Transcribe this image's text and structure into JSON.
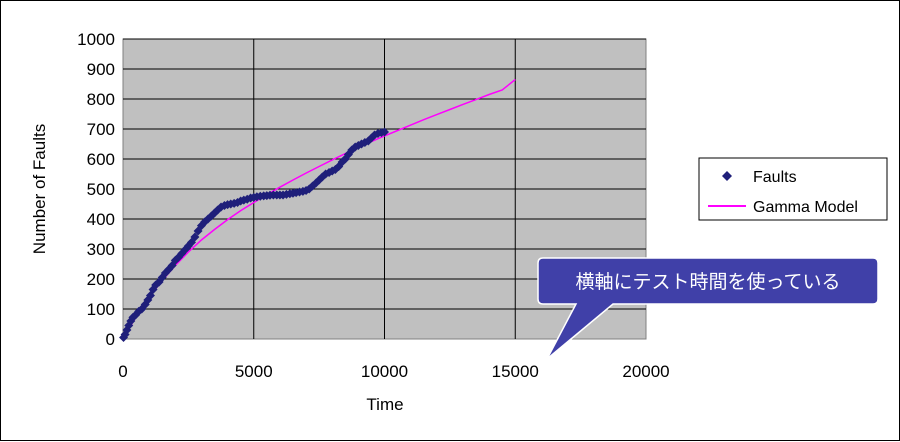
{
  "chart_data": {
    "type": "scatter",
    "xlabel": "Time",
    "ylabel": "Number of Faults",
    "xlim": [
      0,
      20000
    ],
    "ylim": [
      0,
      1000
    ],
    "xticks": [
      0,
      5000,
      10000,
      15000,
      20000
    ],
    "yticks": [
      0,
      100,
      200,
      300,
      400,
      500,
      600,
      700,
      800,
      900,
      1000
    ],
    "grid": true,
    "legend_position": "right",
    "colors": {
      "plot_background": "#c0c0c0",
      "gridline": "#000000",
      "faults": "#1f1f7a",
      "gamma_model": "#ff00ff",
      "callout": "#4040a8"
    },
    "series": [
      {
        "name": "Faults",
        "kind": "scatter",
        "marker": "diamond",
        "x": [
          20,
          80,
          150,
          220,
          300,
          380,
          480,
          600,
          720,
          850,
          950,
          1050,
          1150,
          1250,
          1380,
          1500,
          1620,
          1750,
          1880,
          2000,
          2120,
          2250,
          2380,
          2500,
          2620,
          2750,
          2870,
          3000,
          3120,
          3250,
          3380,
          3500,
          3620,
          3750,
          3880,
          4000,
          4120,
          4250,
          4380,
          4500,
          4620,
          4750,
          4880,
          5000,
          5120,
          5250,
          5380,
          5500,
          5620,
          5750,
          5880,
          6000,
          6120,
          6250,
          6380,
          6500,
          6620,
          6750,
          6880,
          7000,
          7120,
          7250,
          7380,
          7500,
          7620,
          7750,
          7880,
          8000,
          8120,
          8250,
          8380,
          8500,
          8620,
          8750,
          8880,
          9000,
          9120,
          9250,
          9380,
          9500,
          9620,
          9750,
          9880,
          10000
        ],
        "y": [
          5,
          15,
          30,
          45,
          60,
          72,
          80,
          92,
          100,
          115,
          130,
          145,
          165,
          180,
          190,
          205,
          220,
          232,
          245,
          262,
          272,
          285,
          298,
          310,
          322,
          340,
          360,
          378,
          390,
          400,
          410,
          420,
          430,
          440,
          445,
          448,
          450,
          452,
          455,
          460,
          463,
          466,
          470,
          472,
          474,
          476,
          477,
          478,
          479,
          480,
          480,
          480,
          480,
          482,
          484,
          486,
          488,
          490,
          492,
          495,
          500,
          510,
          520,
          530,
          540,
          550,
          555,
          560,
          565,
          575,
          590,
          600,
          615,
          630,
          640,
          645,
          650,
          655,
          660,
          670,
          680,
          685,
          688,
          690
        ]
      },
      {
        "name": "Gamma Model",
        "kind": "line",
        "x": [
          0,
          500,
          1000,
          1500,
          2000,
          2500,
          3000,
          3500,
          4000,
          4500,
          5000,
          5500,
          6000,
          6500,
          7000,
          7500,
          8000,
          8500,
          9000,
          9500,
          10000,
          10500,
          11000,
          11500,
          12000,
          12500,
          13000,
          13500,
          14000,
          14500,
          15000
        ],
        "y": [
          0,
          75,
          140,
          195,
          245,
          290,
          330,
          365,
          398,
          428,
          455,
          481,
          506,
          530,
          553,
          575,
          597,
          618,
          638,
          658,
          677,
          695,
          713,
          731,
          748,
          765,
          782,
          798,
          815,
          830,
          865
        ]
      }
    ]
  },
  "callout": {
    "text": "横軸にテスト時間を使っている",
    "points_to_x": 15000
  }
}
